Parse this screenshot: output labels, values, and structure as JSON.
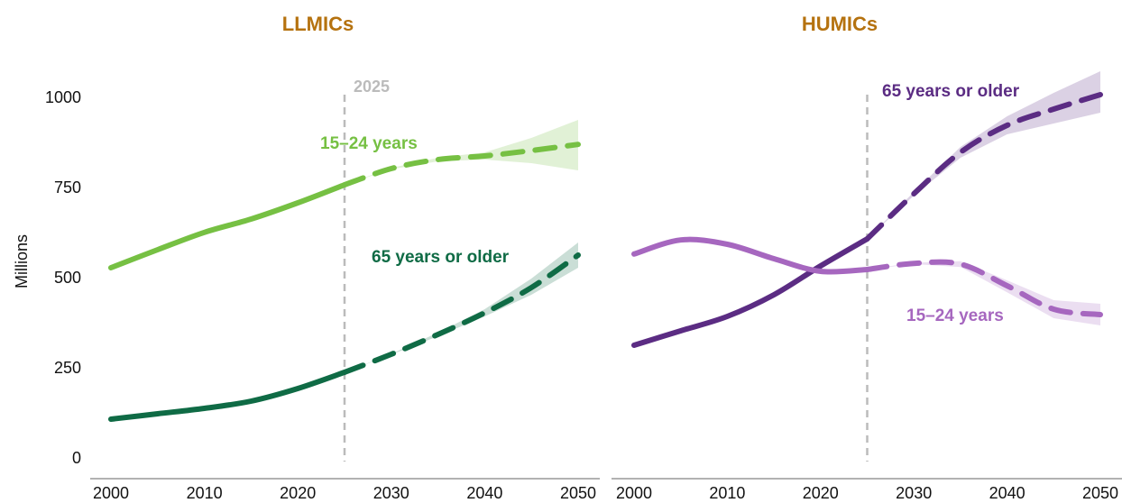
{
  "chart_data": [
    {
      "type": "line",
      "title": "LLMICs",
      "ylabel": "Millions",
      "x": [
        2000,
        2005,
        2010,
        2015,
        2020,
        2025,
        2030,
        2035,
        2040,
        2045,
        2050
      ],
      "xlim": [
        2000,
        2050
      ],
      "xticks": [
        2000,
        2010,
        2020,
        2030,
        2040,
        2050
      ],
      "ylim": [
        0,
        1000
      ],
      "yticks": [
        0,
        250,
        500,
        750,
        1000
      ],
      "annotation": {
        "x": 2025,
        "label": "2025"
      },
      "series": [
        {
          "name": "15–24 years",
          "color": "#76c043",
          "values": [
            530,
            580,
            628,
            665,
            710,
            760,
            805,
            830,
            840,
            855,
            872
          ],
          "lower": [
            null,
            null,
            null,
            null,
            null,
            760,
            803,
            825,
            830,
            820,
            800
          ],
          "upper": [
            null,
            null,
            null,
            null,
            null,
            760,
            807,
            835,
            850,
            890,
            940
          ]
        },
        {
          "name": "65 years or older",
          "color": "#0f6b45",
          "values": [
            110,
            125,
            140,
            160,
            195,
            240,
            290,
            345,
            405,
            475,
            565
          ],
          "lower": [
            null,
            null,
            null,
            null,
            null,
            240,
            289,
            340,
            395,
            455,
            530
          ],
          "upper": [
            null,
            null,
            null,
            null,
            null,
            240,
            291,
            350,
            415,
            500,
            600
          ]
        }
      ]
    },
    {
      "type": "line",
      "title": "HUMICs",
      "x": [
        2000,
        2005,
        2010,
        2015,
        2020,
        2025,
        2030,
        2035,
        2040,
        2045,
        2050
      ],
      "xlim": [
        2000,
        2050
      ],
      "xticks": [
        2000,
        2010,
        2020,
        2030,
        2040,
        2050
      ],
      "ylim": [
        0,
        1000
      ],
      "annotation": {
        "x": 2025
      },
      "series": [
        {
          "name": "65 years or older",
          "color": "#5b2c83",
          "values": [
            315,
            355,
            395,
            455,
            535,
            610,
            735,
            850,
            925,
            970,
            1010
          ],
          "lower": [
            null,
            null,
            null,
            null,
            null,
            610,
            730,
            835,
            900,
            930,
            960
          ],
          "upper": [
            null,
            null,
            null,
            null,
            null,
            610,
            740,
            865,
            950,
            1015,
            1075
          ]
        },
        {
          "name": "15–24 years",
          "color": "#a667bf",
          "values": [
            568,
            607,
            595,
            555,
            520,
            525,
            542,
            540,
            480,
            415,
            400
          ],
          "lower": [
            null,
            null,
            null,
            null,
            null,
            525,
            540,
            532,
            462,
            390,
            370
          ],
          "upper": [
            null,
            null,
            null,
            null,
            null,
            525,
            544,
            548,
            495,
            440,
            430
          ]
        }
      ]
    }
  ]
}
